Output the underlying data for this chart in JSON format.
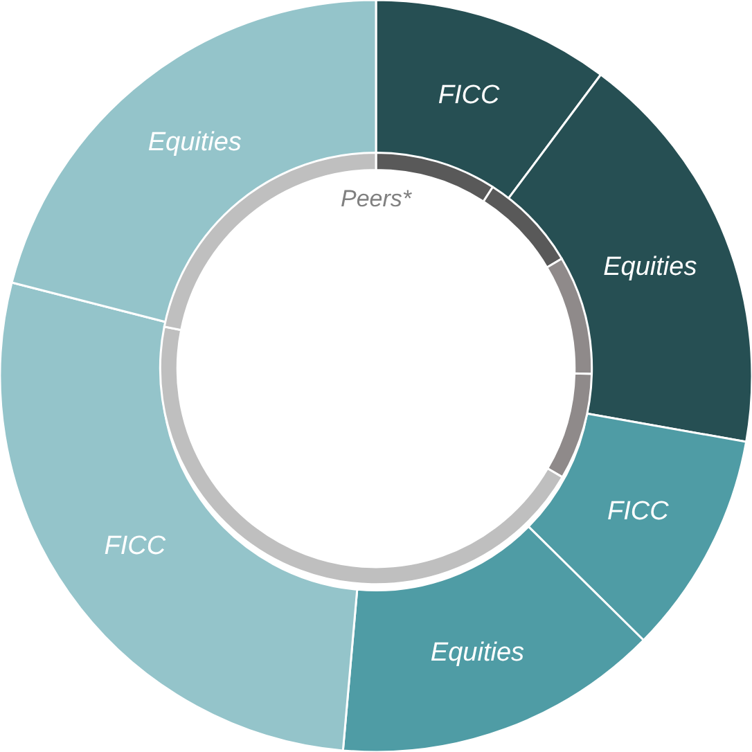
{
  "chart_data": {
    "type": "donut",
    "categories": [
      "FICC",
      "Equities",
      "FICC",
      "Equities",
      "FICC",
      "Equities"
    ],
    "series": [
      {
        "values": [
          10.2,
          17.6,
          9.6,
          14.0,
          27.6,
          21.0
        ],
        "colors": [
          "#264f53",
          "#264f53",
          "#4f9ca5",
          "#4f9ca5",
          "#94c4ca",
          "#94c4ca"
        ]
      },
      {
        "name": "Peers*",
        "values": [
          9.1,
          7.4,
          8.9,
          8.0,
          44.7,
          21.9
        ],
        "colors": [
          "#595959",
          "#595959",
          "#8f8a8a",
          "#8f8a8a",
          "#bfbfbf",
          "#bfbfbf"
        ]
      }
    ]
  }
}
